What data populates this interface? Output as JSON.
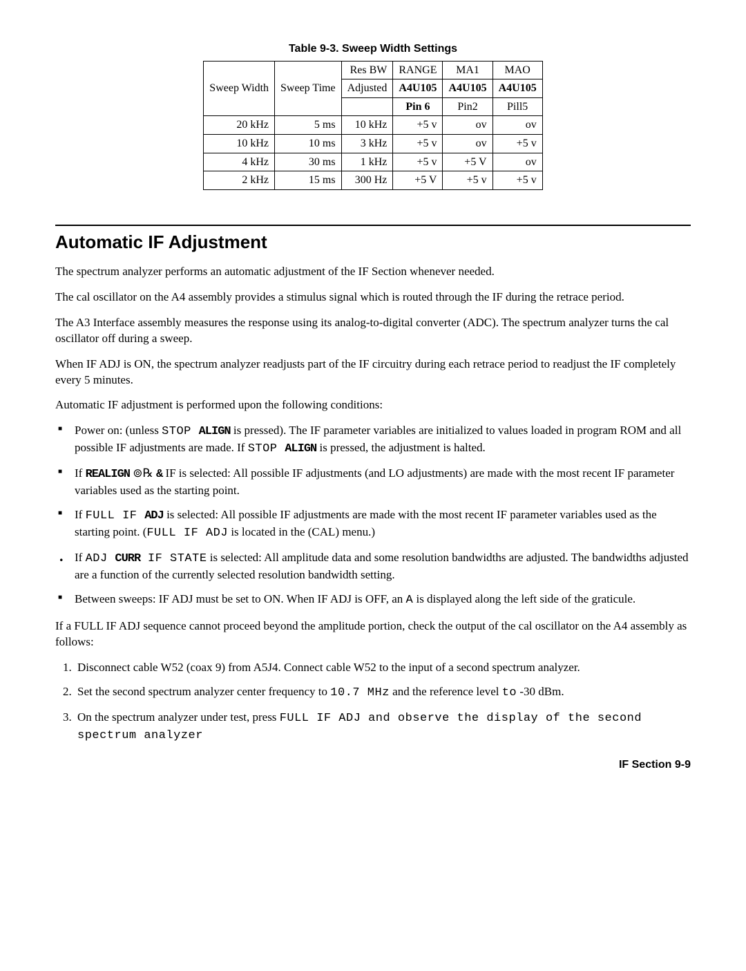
{
  "table": {
    "caption": "Table 9-3. Sweep Width Settings",
    "head": {
      "c1_l1": "Sweep Width",
      "c2_l1": "Sweep Time",
      "c3_l1": "Res BW",
      "c4_l1": "RANGE",
      "c5_l1": "MA1",
      "c6_l1": "MAO",
      "c3_l2": "Adjusted",
      "c4_l2": "A4U105",
      "c5_l2": "A4U105",
      "c6_l2": "A4U105",
      "c4_l3": "Pin 6",
      "c5_l3": "Pin2",
      "c6_l3": "Pill5"
    },
    "rows": [
      {
        "c1": "20 kHz",
        "c2": "5 ms",
        "c3": "10 kHz",
        "c4": "+5 v",
        "c5": "ov",
        "c6": "ov"
      },
      {
        "c1": "10 kHz",
        "c2": "10 ms",
        "c3": "3 kHz",
        "c4": "+5 v",
        "c5": "ov",
        "c6": "+5 v"
      },
      {
        "c1": "4 kHz",
        "c2": "30 ms",
        "c3": "1 kHz",
        "c4": "+5 v",
        "c5": "+5 V",
        "c6": "ov"
      },
      {
        "c1": "2 kHz",
        "c2": "15 ms",
        "c3": "300 Hz",
        "c4": "+5 V",
        "c5": "+5 v",
        "c6": "+5 v"
      }
    ]
  },
  "section": {
    "title": "Automatic IF Adjustment",
    "p1": "The spectrum analyzer performs an automatic adjustment of the IF Section whenever needed.",
    "p2": "The cal oscillator on the A4 assembly provides a stimulus signal which is routed through the IF during the retrace period.",
    "p3": "The A3 Interface assembly measures the response using its analog-to-digital converter (ADC). The spectrum analyzer turns the cal oscillator off during a sweep.",
    "p4": "When IF ADJ is ON, the spectrum analyzer readjusts part of the IF circuitry during each retrace period to readjust the IF completely every 5 minutes.",
    "p5": "Automatic IF adjustment is performed upon the following conditions:",
    "b1a": "Power on: (unless ",
    "b1b": "STOP ",
    "b1c": "ALIGN",
    "b1d": " is pressed). The IF parameter variables are initialized to values loaded in program ROM and all possible IF adjustments are made. If ",
    "b1e": "STOP ",
    "b1f": "ALIGN",
    "b1g": " is pressed, the adjustment is halted.",
    "b2a": "If ",
    "b2b": "REALIGN",
    "b2c": " ⊚℞  ",
    "b2d": "&",
    "b2e": " IF is selected: All possible IF adjustments (and LO adjustments) are made with the most recent IF parameter variables used as the starting point.",
    "b3a": "If ",
    "b3b": "FULL IF ",
    "b3c": "ADJ",
    "b3d": " is selected: All possible IF adjustments are made with the most recent IF parameter variables used as the starting point. (",
    "b3e": "FULL IF ADJ",
    "b3f": " is located in the (CAL) menu.)",
    "b4a": "If ",
    "b4b": "ADJ ",
    "b4c": "CURR",
    "b4d": " IF STATE",
    "b4e": " is selected: All amplitude data and some resolution bandwidths are adjusted. The bandwidths adjusted are a function of the currently selected resolution bandwidth setting.",
    "b5a": "Between sweeps: IF ADJ must be set to ON. When IF ADJ is OFF, an ",
    "b5b": "A",
    "b5c": " is displayed along the left side of the graticule.",
    "p6": "If a FULL IF ADJ sequence cannot proceed beyond the amplitude portion, check the output of the cal oscillator on the A4 assembly as follows:",
    "n1a": "Disconnect cable W52 (coax 9) from ",
    "n1b": "A5J4.",
    "n1c": " Connect cable W52 to the input of a second spectrum analyzer.",
    "n2a": "Set the second spectrum analyzer center frequency to ",
    "n2b": "10.7 MHz",
    "n2c": " and the reference level ",
    "n2d": "to",
    "n2e": " -30 ",
    "n2f": "dBm.",
    "n3a": "On the spectrum analyzer under test, press ",
    "n3b": "FULL IF ADJ and observe the display of the second spectrum analyzer"
  },
  "footer": "IF Section 9-9"
}
